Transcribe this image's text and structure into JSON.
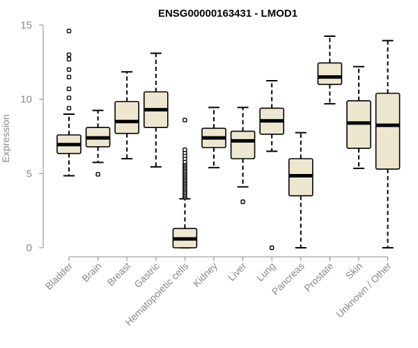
{
  "chart_data": {
    "type": "boxplot",
    "title": "ENSG00000163431 - LMOD1",
    "ylabel": "Expression",
    "xlabel": "",
    "ylim": [
      0,
      15
    ],
    "yticks": [
      0,
      5,
      10,
      15
    ],
    "box_color": "#EEE7CF",
    "categories": [
      "Bladder",
      "Brain",
      "Breast",
      "Gastric",
      "Hematopoietic cells",
      "Kidney",
      "Liver",
      "Lung",
      "Pancreas",
      "Prostate",
      "Skin",
      "Unknown / Other"
    ],
    "boxes": [
      {
        "name": "Bladder",
        "whisker_low": 4.85,
        "q1": 6.35,
        "median": 6.95,
        "q3": 7.6,
        "whisker_high": 9.0,
        "outliers": [
          9.4,
          10.1,
          10.7,
          11.5,
          12.0,
          12.7,
          13.0,
          14.6
        ]
      },
      {
        "name": "Brain",
        "whisker_low": 5.75,
        "q1": 6.8,
        "median": 7.4,
        "q3": 8.1,
        "whisker_high": 9.25,
        "outliers": [
          4.95
        ]
      },
      {
        "name": "Breast",
        "whisker_low": 6.0,
        "q1": 7.7,
        "median": 8.5,
        "q3": 9.85,
        "whisker_high": 11.85,
        "outliers": []
      },
      {
        "name": "Gastric",
        "whisker_low": 5.45,
        "q1": 8.1,
        "median": 9.3,
        "q3": 10.5,
        "whisker_high": 13.1,
        "outliers": []
      },
      {
        "name": "Hematopoietic cells",
        "whisker_low": 0.0,
        "q1": 0.0,
        "median": 0.6,
        "q3": 1.3,
        "whisker_high": 3.3,
        "outliers": [
          3.4,
          3.5,
          3.6,
          3.7,
          3.8,
          3.9,
          4.0,
          4.1,
          4.2,
          4.3,
          4.4,
          4.5,
          4.6,
          4.7,
          4.8,
          4.9,
          5.0,
          5.1,
          5.2,
          5.3,
          5.4,
          5.5,
          5.6,
          5.7,
          5.8,
          6.0,
          6.2,
          6.4,
          6.6,
          8.6
        ]
      },
      {
        "name": "Kidney",
        "whisker_low": 5.4,
        "q1": 6.75,
        "median": 7.4,
        "q3": 8.05,
        "whisker_high": 9.45,
        "outliers": []
      },
      {
        "name": "Liver",
        "whisker_low": 4.1,
        "q1": 6.0,
        "median": 7.2,
        "q3": 7.85,
        "whisker_high": 9.45,
        "outliers": [
          3.1
        ]
      },
      {
        "name": "Lung",
        "whisker_low": 6.5,
        "q1": 7.65,
        "median": 8.55,
        "q3": 9.4,
        "whisker_high": 11.25,
        "outliers": [
          0.0
        ]
      },
      {
        "name": "Pancreas",
        "whisker_low": 0.0,
        "q1": 3.5,
        "median": 4.85,
        "q3": 6.0,
        "whisker_high": 7.75,
        "outliers": []
      },
      {
        "name": "Prostate",
        "whisker_low": 9.7,
        "q1": 11.0,
        "median": 11.5,
        "q3": 12.45,
        "whisker_high": 14.25,
        "outliers": []
      },
      {
        "name": "Skin",
        "whisker_low": 5.35,
        "q1": 6.7,
        "median": 8.4,
        "q3": 9.9,
        "whisker_high": 12.2,
        "outliers": []
      },
      {
        "name": "Unknown / Other",
        "whisker_low": 0.0,
        "q1": 5.3,
        "median": 8.25,
        "q3": 10.4,
        "whisker_high": 13.95,
        "outliers": []
      }
    ]
  }
}
